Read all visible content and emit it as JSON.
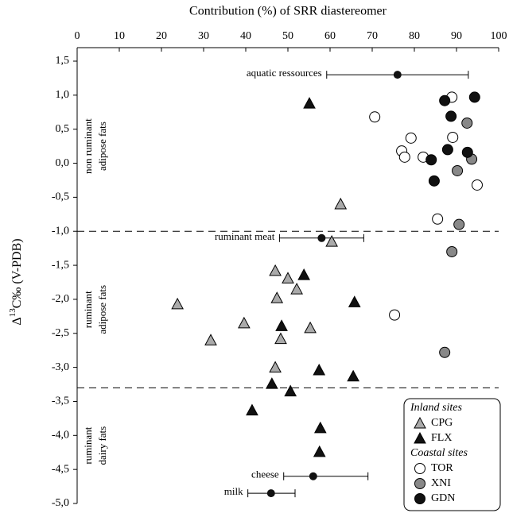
{
  "chart_data": {
    "type": "scatter",
    "title": "Contribution (%) of SRR diastereomer",
    "y_label": {
      "prefix": "Δ",
      "sup": "13",
      "suffix": "C‰ (V-PDB)"
    },
    "xlim": [
      0,
      100
    ],
    "xticks": [
      0,
      10,
      20,
      30,
      40,
      50,
      60,
      70,
      80,
      90,
      100
    ],
    "ylim": [
      -5.0,
      1.5
    ],
    "yticks": [
      {
        "value": 1.5,
        "label": "1,5"
      },
      {
        "value": 1.0,
        "label": "1,0"
      },
      {
        "value": 0.5,
        "label": "0,5"
      },
      {
        "value": 0.0,
        "label": "0,0"
      },
      {
        "value": -0.5,
        "label": "-0,5"
      },
      {
        "value": -1.0,
        "label": "-1,0"
      },
      {
        "value": -1.5,
        "label": "-1,5"
      },
      {
        "value": -2.0,
        "label": "-2,0"
      },
      {
        "value": -2.5,
        "label": "-2,5"
      },
      {
        "value": -3.0,
        "label": "-3,0"
      },
      {
        "value": -3.5,
        "label": "-3,5"
      },
      {
        "value": -4.0,
        "label": "-4,0"
      },
      {
        "value": -4.5,
        "label": "-4,5"
      },
      {
        "value": -5.0,
        "label": "-5,0"
      }
    ],
    "hlines": [
      -1.0,
      -3.3
    ],
    "regions": [
      {
        "lines": [
          "non ruminant",
          "adipose fats"
        ]
      },
      {
        "lines": [
          "ruminant",
          "adipose fats"
        ]
      },
      {
        "lines": [
          "ruminant",
          "dairy fats"
        ]
      }
    ],
    "annotations": [
      {
        "text": "aquatic ressources",
        "x": 76,
        "y": 1.3,
        "low": 59.2,
        "high": 92.8
      },
      {
        "text": "ruminant meat",
        "x": 58,
        "y": -1.1,
        "low": 48,
        "high": 68
      },
      {
        "text": "cheese",
        "x": 56,
        "y": -4.6,
        "low": 49,
        "high": 69
      },
      {
        "text": "milk",
        "x": 46,
        "y": -4.85,
        "low": 40.5,
        "high": 51.7
      }
    ],
    "legend_titles": [
      "Inland sites",
      "Coastal sites"
    ],
    "series": [
      {
        "name": "CPG",
        "marker": "triangle",
        "color": "#aaaaaa",
        "x": [
          62.5,
          60.4,
          47,
          50,
          52.1,
          47.4,
          23.8,
          39.6,
          55.3,
          48.3,
          31.7,
          47
        ],
        "y": [
          -0.6,
          -1.15,
          -1.58,
          -1.69,
          -1.85,
          -1.98,
          -2.07,
          -2.35,
          -2.42,
          -2.58,
          -2.6,
          -3.0
        ]
      },
      {
        "name": "FLX",
        "marker": "triangle",
        "color": "#111111",
        "x": [
          55.1,
          53.8,
          65.8,
          48.5,
          57.4,
          65.5,
          46.2,
          50.6,
          41.5,
          57.7,
          57.5
        ],
        "y": [
          0.88,
          -1.64,
          -2.04,
          -2.39,
          -3.04,
          -3.13,
          -3.24,
          -3.35,
          -3.63,
          -3.89,
          -4.24
        ]
      },
      {
        "name": "TOR",
        "marker": "circle",
        "color": "#ffffff",
        "x": [
          70.6,
          88.9,
          79.2,
          77,
          77.7,
          82.1,
          89.1,
          94.9,
          85.5,
          75.3
        ],
        "y": [
          0.68,
          0.97,
          0.37,
          0.18,
          0.09,
          0.09,
          0.38,
          -0.32,
          -0.82,
          -2.23
        ]
      },
      {
        "name": "XNI",
        "marker": "circle",
        "color": "#888888",
        "x": [
          92.5,
          90.2,
          93.6,
          90.6,
          88.9,
          87.2
        ],
        "y": [
          0.59,
          -0.11,
          0.06,
          -0.9,
          -1.3,
          -2.78
        ]
      },
      {
        "name": "GDN",
        "marker": "circle",
        "color": "#111111",
        "x": [
          87.2,
          94.3,
          88.7,
          87.9,
          92.6,
          84,
          84.7
        ],
        "y": [
          0.92,
          0.97,
          0.69,
          0.2,
          0.16,
          0.05,
          -0.26
        ]
      }
    ]
  }
}
